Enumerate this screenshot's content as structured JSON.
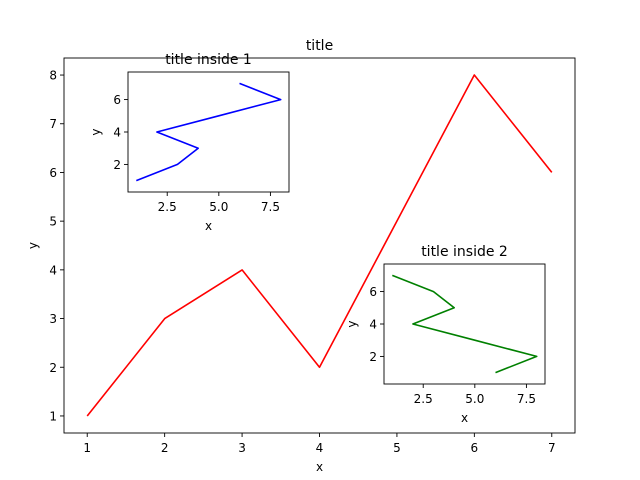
{
  "chart_data": [
    {
      "type": "line",
      "title": "title",
      "xlabel": "x",
      "ylabel": "y",
      "x": [
        1,
        2,
        3,
        4,
        5,
        6,
        7
      ],
      "xlim": [
        0.7,
        7.3
      ],
      "ylim": [
        0.65,
        8.35
      ],
      "xticks": [
        1,
        2,
        3,
        4,
        5,
        6,
        7
      ],
      "yticks": [
        1,
        2,
        3,
        4,
        5,
        6,
        7,
        8
      ],
      "series": [
        {
          "values": [
            1,
            3,
            4,
            2,
            5,
            8,
            6
          ],
          "color": "#ff0000"
        }
      ],
      "grid": false
    },
    {
      "type": "line",
      "title": "title inside 1",
      "xlabel": "x",
      "ylabel": "y",
      "x": [
        1,
        2,
        3,
        4,
        5,
        6,
        7
      ],
      "xlim": [
        0.6,
        8.4
      ],
      "ylim": [
        0.3,
        7.7
      ],
      "xticks": [
        2.5,
        5.0,
        7.5
      ],
      "yticks": [
        2,
        4,
        6
      ],
      "series": [
        {
          "values": [
            1,
            3,
            4,
            2,
            5,
            8,
            6
          ],
          "color": "#0000ff",
          "orientation": "x-as-vertical"
        }
      ],
      "grid": false
    },
    {
      "type": "line",
      "title": "title inside 2",
      "xlabel": "x",
      "ylabel": "y",
      "x": [
        1,
        2,
        3,
        4,
        5,
        6,
        7
      ],
      "xlim": [
        0.6,
        8.4
      ],
      "ylim": [
        0.3,
        7.7
      ],
      "xticks": [
        2.5,
        5.0,
        7.5
      ],
      "yticks": [
        2,
        4,
        6
      ],
      "series": [
        {
          "values": [
            1,
            3,
            4,
            2,
            5,
            8,
            6
          ],
          "color": "#008000",
          "orientation": "x-as-vertical-reversed"
        }
      ],
      "grid": false
    }
  ]
}
